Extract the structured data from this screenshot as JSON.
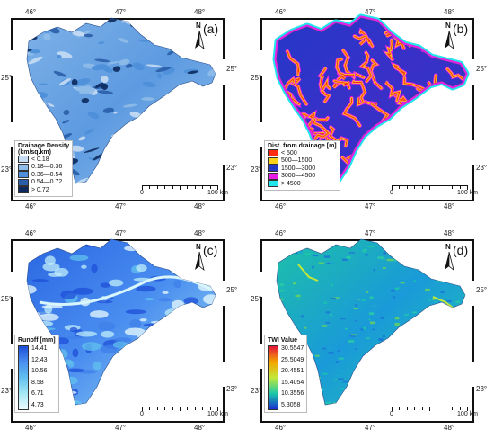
{
  "lon_labels": [
    "46°",
    "47°",
    "48°"
  ],
  "lat_labels": [
    "25°",
    "23°"
  ],
  "panels": [
    {
      "id": "a",
      "label": "(a)",
      "legend_title_lines": [
        "Drainage Density",
        "(km/sq.km)"
      ],
      "legend_kind": "classes",
      "legend_items": [
        {
          "label": "< 0.18",
          "color": "#c6dcf3"
        },
        {
          "label": "0.18—0.36",
          "color": "#8fbce9"
        },
        {
          "label": "0.36—0.54",
          "color": "#4d8fd8"
        },
        {
          "label": "0.54—0.72",
          "color": "#2a5ea8"
        },
        {
          "label": "> 0.72",
          "color": "#0c2a5e"
        }
      ]
    },
    {
      "id": "b",
      "label": "(b)",
      "legend_title_lines": [
        "Dist. from drainage [m]"
      ],
      "legend_kind": "classes",
      "legend_items": [
        {
          "label": "< 500",
          "color": "#ff2a12"
        },
        {
          "label": "500—1500",
          "color": "#ffd21a"
        },
        {
          "label": "1500—3000",
          "color": "#2438c8"
        },
        {
          "label": "3000—4500",
          "color": "#e61ee6"
        },
        {
          "label": "> 4500",
          "color": "#21e6ea"
        }
      ]
    },
    {
      "id": "c",
      "label": "(c)",
      "legend_title_lines": [
        "Runoff [mm]"
      ],
      "legend_kind": "gradient",
      "gradient_colors": [
        "#1d4fd8",
        "#4a8ef0",
        "#62c0ee",
        "#a6e8f4",
        "#eafbfd"
      ],
      "gradient_labels": [
        "14.41",
        "12.43",
        "10.56",
        "8.58",
        "6.71",
        "4.73"
      ]
    },
    {
      "id": "d",
      "label": "(d)",
      "legend_title_lines": [
        "TWI Value"
      ],
      "legend_kind": "gradient",
      "gradient_colors": [
        "#e4143a",
        "#f3a500",
        "#c2e83a",
        "#1bc8a8",
        "#1a2fd2"
      ],
      "gradient_labels": [
        "30.5547",
        "25.5049",
        "20.4551",
        "15.4054",
        "10.3556",
        "5.3058"
      ]
    }
  ],
  "north_label": "N",
  "scale": {
    "zero": "0",
    "end": "100 km"
  }
}
